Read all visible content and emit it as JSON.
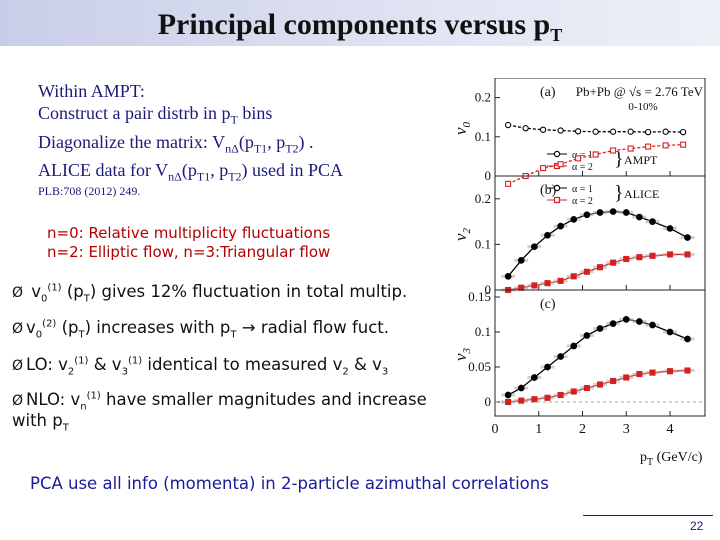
{
  "title": {
    "main": "Principal components versus p",
    "sub": "T"
  },
  "intro": [
    {
      "pre": "Within AMPT:",
      "sub": "",
      "post": ""
    },
    {
      "pre": "Construct a pair distrb in p",
      "sub": "T",
      "post": " bins"
    },
    {
      "pre": "Diagonalize the matrix: V",
      "sub": "nΔ",
      "post": "(p",
      "sub2": "T1",
      "post2": ", p",
      "sub3": "T2",
      "post3": ") ."
    }
  ],
  "alice": {
    "pre": "ALICE data for V",
    "sub": "nΔ",
    "mid": "(p",
    "sub2": "T1",
    "mid2": ", p",
    "sub3": "T2",
    "post": ")  used in PCA"
  },
  "reference": "PLB:708 (2012) 249.",
  "definitions": [
    "n=0: Relative multiplicity fluctuations",
    "n=2: Elliptic flow,  n=3:Triangular flow"
  ],
  "bullets": [
    {
      "marker": "Ø",
      "parts": [
        "v",
        "0",
        "(1)",
        " (p",
        "T",
        ") gives 12% fluctuation in total multip."
      ]
    },
    {
      "marker": "Ø",
      "parts": [
        "v",
        "0",
        "(2)",
        " (p",
        "T",
        ") increases with p",
        "T",
        " → radial flow fuct."
      ]
    },
    {
      "marker": "Ø",
      "parts": [
        "LO: v",
        "2",
        "(1)",
        "  & v",
        "3",
        "(1)",
        " identical to measured v",
        "2",
        " & v",
        "3",
        ""
      ]
    },
    {
      "marker": "Ø",
      "parts": [
        "NLO: v",
        "n",
        "(1)",
        " have smaller magnitudes and increase"
      ],
      "cont": [
        "with p",
        "T"
      ]
    }
  ],
  "footer": "PCA use all info (momenta) in 2-particle azimuthal correlations",
  "page_number": "22",
  "colors": {
    "title_bar": "#c9cee8",
    "intro_text": "#1a1a7a",
    "defs_text": "#b40000",
    "footer_text": "#1a1a9a",
    "series_alpha1": "#000000",
    "series_alpha2": "#d62020"
  },
  "chart_data": {
    "type": "line",
    "xlabel": "p_T (GeV/c)",
    "xlim": [
      0,
      4.8
    ],
    "xticks": [
      "0",
      "1",
      "2",
      "3",
      "4"
    ],
    "panels": [
      {
        "label": "(a)",
        "ylabel": "v_0",
        "annotation": "Pb+Pb @ √s = 2.76 TeV",
        "annotation2": "0-10%",
        "tag": "AMPT",
        "ylim": [
          0,
          0.25
        ],
        "yticks": [
          "0",
          "0.1",
          "0.2"
        ],
        "series": [
          {
            "name": "α = 1",
            "x": [
              0.3,
              0.7,
              1.1,
              1.5,
              1.9,
              2.3,
              2.7,
              3.1,
              3.5,
              3.9,
              4.3
            ],
            "y": [
              0.13,
              0.122,
              0.118,
              0.116,
              0.114,
              0.113,
              0.113,
              0.113,
              0.112,
              0.113,
              0.112
            ]
          },
          {
            "name": "α = 2",
            "x": [
              0.3,
              0.7,
              1.1,
              1.5,
              1.9,
              2.3,
              2.7,
              3.1,
              3.5,
              3.9,
              4.3
            ],
            "y": [
              -0.02,
              0.0,
              0.02,
              0.03,
              0.045,
              0.055,
              0.065,
              0.07,
              0.075,
              0.078,
              0.08
            ]
          }
        ]
      },
      {
        "label": "(b)",
        "ylabel": "v_2",
        "tag": "ALICE",
        "ylim": [
          0,
          0.25
        ],
        "yticks": [
          "0",
          "0.1",
          "0.2"
        ],
        "series": [
          {
            "name": "α = 1",
            "x": [
              0.3,
              0.6,
              0.9,
              1.2,
              1.5,
              1.8,
              2.1,
              2.4,
              2.7,
              3.0,
              3.3,
              3.6,
              4.0,
              4.4
            ],
            "y": [
              0.03,
              0.065,
              0.095,
              0.12,
              0.14,
              0.155,
              0.165,
              0.17,
              0.172,
              0.17,
              0.16,
              0.15,
              0.135,
              0.115
            ]
          },
          {
            "name": "α = 2",
            "x": [
              0.3,
              0.6,
              0.9,
              1.2,
              1.5,
              1.8,
              2.1,
              2.4,
              2.7,
              3.0,
              3.3,
              3.6,
              4.0,
              4.4
            ],
            "y": [
              0.0,
              0.005,
              0.01,
              0.015,
              0.02,
              0.03,
              0.04,
              0.05,
              0.06,
              0.068,
              0.072,
              0.075,
              0.078,
              0.078
            ]
          }
        ]
      },
      {
        "label": "(c)",
        "ylabel": "v_3",
        "ylim": [
          -0.02,
          0.16
        ],
        "yticks": [
          "0",
          "0.05",
          "0.1",
          "0.15"
        ],
        "series": [
          {
            "name": "α = 1",
            "x": [
              0.3,
              0.6,
              0.9,
              1.2,
              1.5,
              1.8,
              2.1,
              2.4,
              2.7,
              3.0,
              3.3,
              3.6,
              4.0,
              4.4
            ],
            "y": [
              0.01,
              0.02,
              0.035,
              0.05,
              0.065,
              0.08,
              0.095,
              0.105,
              0.112,
              0.118,
              0.115,
              0.11,
              0.1,
              0.09
            ]
          },
          {
            "name": "α = 2",
            "x": [
              0.3,
              0.6,
              0.9,
              1.2,
              1.5,
              1.8,
              2.1,
              2.4,
              2.7,
              3.0,
              3.3,
              3.6,
              4.0,
              4.4
            ],
            "y": [
              0.0,
              0.002,
              0.004,
              0.006,
              0.01,
              0.015,
              0.02,
              0.025,
              0.03,
              0.035,
              0.04,
              0.042,
              0.044,
              0.045
            ]
          }
        ]
      }
    ]
  }
}
